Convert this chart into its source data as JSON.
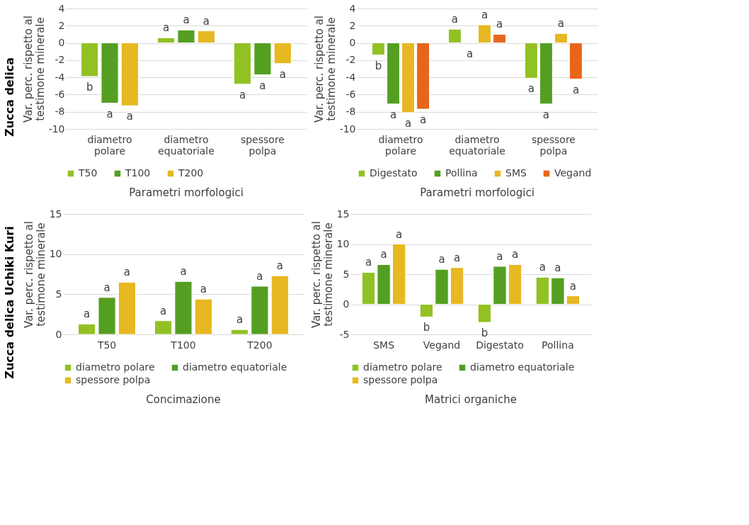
{
  "chart_data": [
    {
      "type": "bar",
      "annotations": [
        "Zucca delica"
      ],
      "xlabel": "Parametri morfologici",
      "ylabel": "Var. perc. rispetto al testimone minerale",
      "categories": [
        "diametro polare",
        "diametro equatoriale",
        "spessore polpa"
      ],
      "ylim": [
        -10,
        4
      ],
      "yticks": [
        -10,
        -8,
        -6,
        -4,
        -2,
        0,
        2,
        4
      ],
      "grid": "y",
      "legend": "bottom",
      "series": [
        {
          "name": "T50",
          "color": "#92c123",
          "values": [
            -3.9,
            0.6,
            -4.8
          ],
          "value_labels": [
            "b",
            "a",
            "a"
          ]
        },
        {
          "name": "T100",
          "color": "#549f22",
          "values": [
            -7.0,
            1.5,
            -3.7
          ],
          "value_labels": [
            "a",
            "a",
            "a"
          ]
        },
        {
          "name": "T200",
          "color": "#e6b821",
          "values": [
            -7.3,
            1.4,
            -2.4
          ],
          "value_labels": [
            "a",
            "a",
            "a"
          ]
        }
      ]
    },
    {
      "type": "bar",
      "xlabel": "Parametri morfologici",
      "ylabel": "Var. perc. rispetto al testimone minerale",
      "categories": [
        "diametro polare",
        "diametro equatoriale",
        "spessore polpa"
      ],
      "ylim": [
        -10,
        4
      ],
      "yticks": [
        -10,
        -8,
        -6,
        -4,
        -2,
        0,
        2,
        4
      ],
      "grid": "y",
      "legend": "bottom",
      "series": [
        {
          "name": "Digestato",
          "color": "#92c123",
          "values": [
            -1.4,
            1.6,
            -4.1
          ],
          "value_labels": [
            "b",
            "a",
            "a"
          ]
        },
        {
          "name": "Pollina",
          "color": "#549f22",
          "values": [
            -7.1,
            null,
            -7.1
          ],
          "value_labels": [
            "a",
            "a",
            "a"
          ]
        },
        {
          "name": "SMS",
          "color": "#e6b821",
          "values": [
            -8.1,
            2.1,
            1.1
          ],
          "value_labels": [
            "a",
            "a",
            "a"
          ]
        },
        {
          "name": "Vegand",
          "color": "#e8661a",
          "values": [
            -7.7,
            1.0,
            -4.2
          ],
          "value_labels": [
            "a",
            "a",
            "a"
          ]
        }
      ]
    },
    {
      "type": "bar",
      "annotations": [
        "Zucca delica Uchiki Kuri"
      ],
      "xlabel": "Concimazione",
      "ylabel": "Var. perc. rispetto al testimone minerale",
      "categories": [
        "T50",
        "T100",
        "T200"
      ],
      "ylim": [
        0,
        15
      ],
      "yticks": [
        0,
        5,
        10,
        15
      ],
      "grid": "y",
      "legend": "bottom",
      "series": [
        {
          "name": "diametro polare",
          "color": "#92c123",
          "values": [
            1.3,
            1.7,
            0.6
          ],
          "value_labels": [
            "a",
            "a",
            "a"
          ]
        },
        {
          "name": "diametro equatoriale",
          "color": "#549f22",
          "values": [
            4.6,
            6.6,
            6.0
          ],
          "value_labels": [
            "a",
            "a",
            "a"
          ]
        },
        {
          "name": "spessore polpa",
          "color": "#e6b821",
          "values": [
            6.5,
            4.4,
            7.3
          ],
          "value_labels": [
            "a",
            "a",
            "a"
          ]
        }
      ]
    },
    {
      "type": "bar",
      "xlabel": "Matrici organiche",
      "ylabel": "Var. perc. rispetto al testimone minerale",
      "categories": [
        "SMS",
        "Vegand",
        "Digestato",
        "Pollina"
      ],
      "ylim": [
        -5,
        15
      ],
      "yticks": [
        -5,
        0,
        5,
        10,
        15
      ],
      "grid": "y",
      "legend": "bottom",
      "series": [
        {
          "name": "diametro polare",
          "color": "#92c123",
          "values": [
            5.3,
            -2.1,
            -3.0,
            4.5
          ],
          "value_labels": [
            "a",
            "b",
            "b",
            "a"
          ]
        },
        {
          "name": "diametro equatoriale",
          "color": "#549f22",
          "values": [
            6.6,
            5.8,
            6.3,
            4.4
          ],
          "value_labels": [
            "a",
            "a",
            "a",
            "a"
          ]
        },
        {
          "name": "spessore polpa",
          "color": "#e6b821",
          "values": [
            10.0,
            6.1,
            6.6,
            1.4
          ],
          "value_labels": [
            "a",
            "a",
            "a",
            "a"
          ]
        }
      ]
    }
  ]
}
